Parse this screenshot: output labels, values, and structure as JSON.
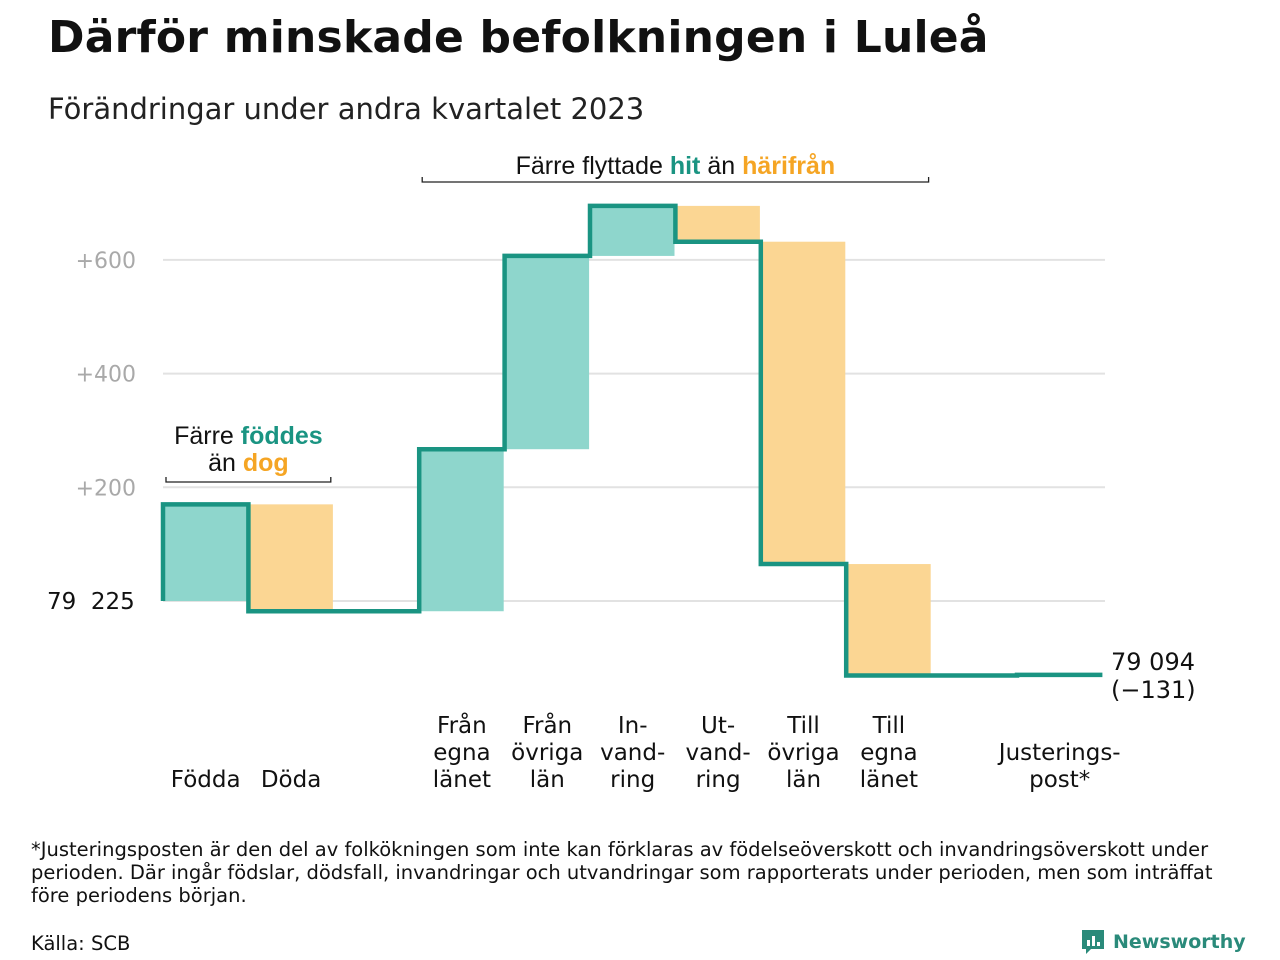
{
  "title": "Därför minskade befolkningen i Luleå",
  "subtitle": "Förändringar under andra kvartalet 2023",
  "colors": {
    "line": "#1a9482",
    "increase": "#8ed6cc",
    "decrease": "#fbd693",
    "grid": "#e2e2e2",
    "tick_text": "#a9a9a9",
    "accent_teal": "#1a9482",
    "accent_orange": "#f5a524"
  },
  "chart_data": {
    "type": "waterfall",
    "title": "Därför minskade befolkningen i Luleå",
    "subtitle": "Förändringar under andra kvartalet 2023",
    "baseline": 79225,
    "start_label": "79  225",
    "end_value": 79094,
    "end_label_lines": [
      "79 094",
      "(−131)"
    ],
    "yticks": [
      {
        "value": 0,
        "label": ""
      },
      {
        "value": 200,
        "label": "+200"
      },
      {
        "value": 400,
        "label": "+400"
      },
      {
        "value": 600,
        "label": "+600"
      }
    ],
    "ylim": [
      -160,
      700
    ],
    "grid": true,
    "bars": [
      {
        "label_lines": [
          "Födda"
        ],
        "delta": 170,
        "kind": "increase"
      },
      {
        "label_lines": [
          "Döda"
        ],
        "delta": -188,
        "kind": "decrease"
      },
      {
        "label_lines": [],
        "delta": 0,
        "kind": "none"
      },
      {
        "label_lines": [
          "Från",
          "egna",
          "länet"
        ],
        "delta": 285,
        "kind": "increase"
      },
      {
        "label_lines": [
          "Från",
          "övriga",
          "län"
        ],
        "delta": 340,
        "kind": "increase"
      },
      {
        "label_lines": [
          "In-",
          "vand-",
          "ring"
        ],
        "delta": 88,
        "kind": "increase"
      },
      {
        "label_lines": [
          "Ut-",
          "vand-",
          "ring"
        ],
        "delta": -63,
        "kind": "decrease"
      },
      {
        "label_lines": [
          "Till",
          "övriga",
          "län"
        ],
        "delta": -567,
        "kind": "decrease"
      },
      {
        "label_lines": [
          "Till",
          "egna",
          "länet"
        ],
        "delta": -196,
        "kind": "decrease"
      },
      {
        "label_lines": [],
        "delta": 0,
        "kind": "none"
      },
      {
        "label_lines": [
          "Justerings-",
          "post*"
        ],
        "delta": 1,
        "kind": "none"
      }
    ],
    "annotations": [
      {
        "parts": [
          {
            "lines": [
              [
                {
                  "text": "Färre ",
                  "style": "plain"
                },
                {
                  "text": "föddes",
                  "style": "teal"
                }
              ],
              [
                {
                  "text": "än ",
                  "style": "plain"
                },
                {
                  "text": "dog",
                  "style": "orange"
                }
              ]
            ]
          }
        ],
        "bracket_from": 0,
        "bracket_to": 1,
        "placement": "left-bracket"
      },
      {
        "parts": [
          {
            "lines": [
              [
                {
                  "text": "Färre flyttade ",
                  "style": "plain"
                },
                {
                  "text": "hit",
                  "style": "teal"
                },
                {
                  "text": " än ",
                  "style": "plain"
                },
                {
                  "text": "härifrån",
                  "style": "orange"
                }
              ]
            ]
          }
        ],
        "bracket_from": 3,
        "bracket_to": 8,
        "placement": "top-bracket"
      }
    ]
  },
  "footnote": "*Justeringsposten är den del av folkökningen som inte kan förklaras av födelseöverskott och invandringsöverskott under perioden. Där ingår födslar, dödsfall, invandringar och utvandringar som rapporterats under perioden, men som inträffat före periodens början.",
  "source": "Källa: SCB",
  "brand": {
    "name": "Newsworthy",
    "icon": "newsworthy-logo-icon"
  }
}
